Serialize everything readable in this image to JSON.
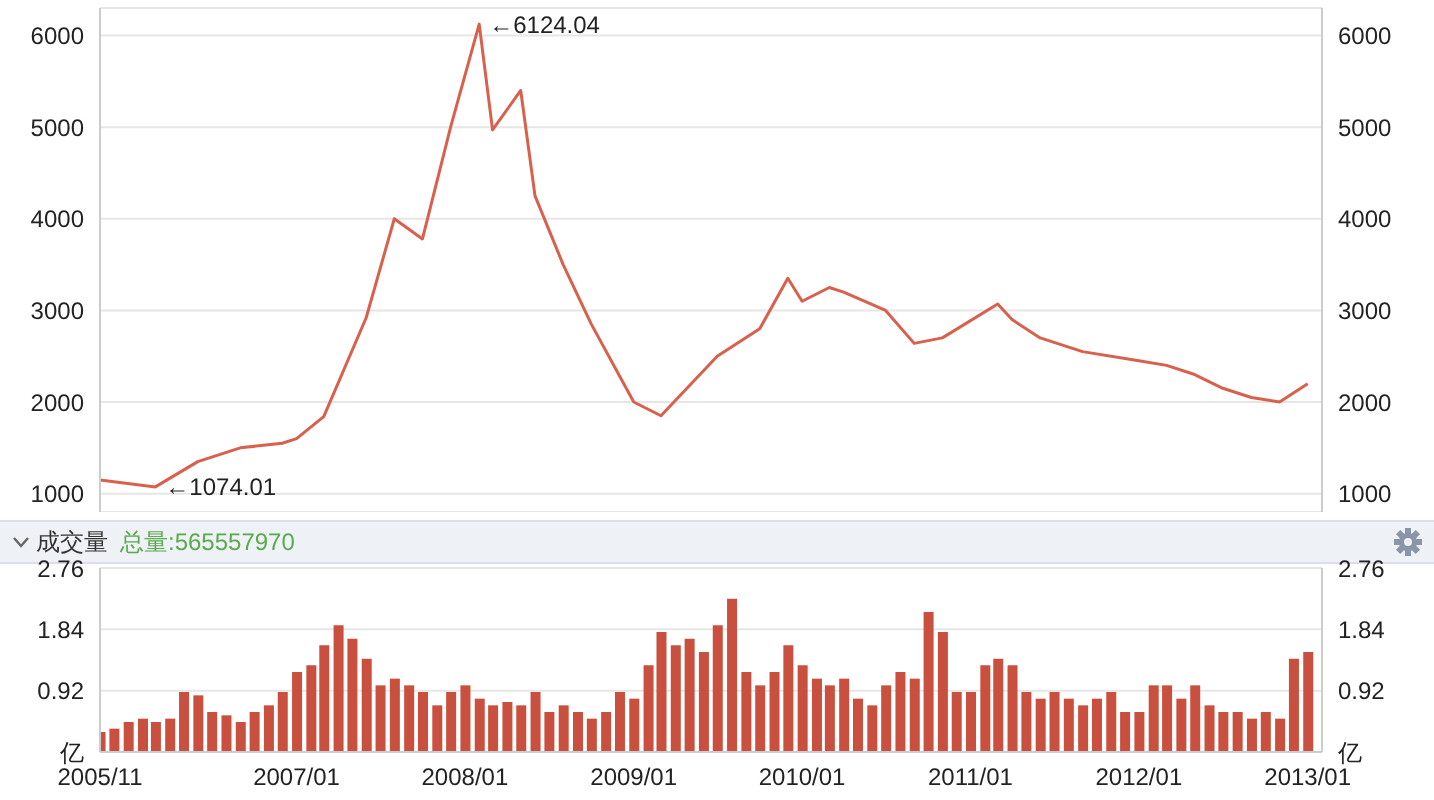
{
  "chart_data": [
    {
      "type": "line",
      "x": [
        "2005-11",
        "2006-03",
        "2006-06",
        "2006-09",
        "2006-12",
        "2007-01",
        "2007-03",
        "2007-06",
        "2007-08",
        "2007-10",
        "2007-12",
        "2008-02",
        "2008-03",
        "2008-05",
        "2008-06",
        "2008-08",
        "2008-10",
        "2009-01",
        "2009-03",
        "2009-07",
        "2009-10",
        "2009-12",
        "2010-01",
        "2010-03",
        "2010-04",
        "2010-07",
        "2010-09",
        "2010-11",
        "2011-03",
        "2011-04",
        "2011-06",
        "2011-09",
        "2012-01",
        "2012-03",
        "2012-05",
        "2012-07",
        "2012-09",
        "2012-11",
        "2013-01"
      ],
      "series": [
        {
          "color": "#d9604c",
          "values": [
            1150,
            1074.01,
            1350,
            1500,
            1550,
            1600,
            1840,
            2920,
            4000,
            3780,
            5000,
            6124.04,
            4970,
            5400,
            4250,
            3500,
            2850,
            2000,
            1850,
            2500,
            2800,
            3350,
            3100,
            3250,
            3200,
            3000,
            2640,
            2700,
            3070,
            2900,
            2700,
            2550,
            2450,
            2400,
            2300,
            2150,
            2050,
            2000,
            2200
          ]
        }
      ],
      "xlim": [
        "2005-11",
        "2013-02"
      ],
      "ylim": [
        800,
        6300
      ],
      "yticks": [
        1000,
        2000,
        3000,
        4000,
        5000,
        6000
      ],
      "y2lim": [
        800,
        6300
      ],
      "y2ticks": [
        1000,
        2000,
        3000,
        4000,
        5000,
        6000
      ],
      "tick_labels": "y",
      "grid": "y",
      "line_style": "solid",
      "marker": "none",
      "annotations": [
        {
          "text": "←6124.04",
          "x": "2008-02",
          "y": 6124.04
        },
        {
          "text": "←1074.01",
          "x": "2006-03",
          "y": 1074.01
        }
      ]
    },
    {
      "type": "bar",
      "annotations": [
        "成交量",
        "总量:565557970"
      ],
      "x": [
        "2005-11",
        "2005-12",
        "2006-01",
        "2006-02",
        "2006-03",
        "2006-04",
        "2006-05",
        "2006-06",
        "2006-07",
        "2006-08",
        "2006-09",
        "2006-10",
        "2006-11",
        "2006-12",
        "2007-01",
        "2007-02",
        "2007-03",
        "2007-04",
        "2007-05",
        "2007-06",
        "2007-07",
        "2007-08",
        "2007-09",
        "2007-10",
        "2007-11",
        "2007-12",
        "2008-01",
        "2008-02",
        "2008-03",
        "2008-04",
        "2008-05",
        "2008-06",
        "2008-07",
        "2008-08",
        "2008-09",
        "2008-10",
        "2008-11",
        "2008-12",
        "2009-01",
        "2009-02",
        "2009-03",
        "2009-04",
        "2009-05",
        "2009-06",
        "2009-07",
        "2009-08",
        "2009-09",
        "2009-10",
        "2009-11",
        "2009-12",
        "2010-01",
        "2010-02",
        "2010-03",
        "2010-04",
        "2010-05",
        "2010-06",
        "2010-07",
        "2010-08",
        "2010-09",
        "2010-10",
        "2010-11",
        "2010-12",
        "2011-01",
        "2011-02",
        "2011-03",
        "2011-04",
        "2011-05",
        "2011-06",
        "2011-07",
        "2011-08",
        "2011-09",
        "2011-10",
        "2011-11",
        "2011-12",
        "2012-01",
        "2012-02",
        "2012-03",
        "2012-04",
        "2012-05",
        "2012-06",
        "2012-07",
        "2012-08",
        "2012-09",
        "2012-10",
        "2012-11",
        "2012-12",
        "2013-01"
      ],
      "series": [
        {
          "color": "#c9503e",
          "values": [
            0.3,
            0.35,
            0.45,
            0.5,
            0.45,
            0.5,
            0.9,
            0.85,
            0.6,
            0.55,
            0.45,
            0.6,
            0.7,
            0.9,
            1.2,
            1.3,
            1.6,
            1.9,
            1.7,
            1.4,
            1.0,
            1.1,
            1.0,
            0.9,
            0.7,
            0.9,
            1.0,
            0.8,
            0.7,
            0.75,
            0.7,
            0.9,
            0.6,
            0.7,
            0.6,
            0.5,
            0.6,
            0.9,
            0.8,
            1.3,
            1.8,
            1.6,
            1.7,
            1.5,
            1.9,
            2.3,
            1.2,
            1.0,
            1.2,
            1.6,
            1.3,
            1.1,
            1.0,
            1.1,
            0.8,
            0.7,
            1.0,
            1.2,
            1.1,
            2.1,
            1.8,
            0.9,
            0.9,
            1.3,
            1.4,
            1.3,
            0.9,
            0.8,
            0.9,
            0.8,
            0.7,
            0.8,
            0.9,
            0.6,
            0.6,
            1.0,
            1.0,
            0.8,
            1.0,
            0.7,
            0.6,
            0.6,
            0.5,
            0.6,
            0.5,
            1.4,
            1.5
          ]
        }
      ],
      "xlim": [
        "2005-11",
        "2013-02"
      ],
      "xticks": [
        {
          "value": "2005-11",
          "label": "2005/11"
        },
        {
          "value": "2007-01",
          "label": "2007/01"
        },
        {
          "value": "2008-01",
          "label": "2008/01"
        },
        {
          "value": "2009-01",
          "label": "2009/01"
        },
        {
          "value": "2010-01",
          "label": "2010/01"
        },
        {
          "value": "2011-01",
          "label": "2011/01"
        },
        {
          "value": "2012-01",
          "label": "2012/01"
        },
        {
          "value": "2013-01",
          "label": "2013/01"
        }
      ],
      "ylim": [
        0,
        2.76
      ],
      "yticks": [
        {
          "value": 0,
          "label": "亿"
        },
        0.92,
        1.84,
        2.76
      ],
      "y2lim": [
        0,
        2.76
      ],
      "y2ticks": [
        {
          "value": 0,
          "label": "亿"
        },
        0.92,
        1.84,
        2.76
      ],
      "grid": "y"
    }
  ]
}
